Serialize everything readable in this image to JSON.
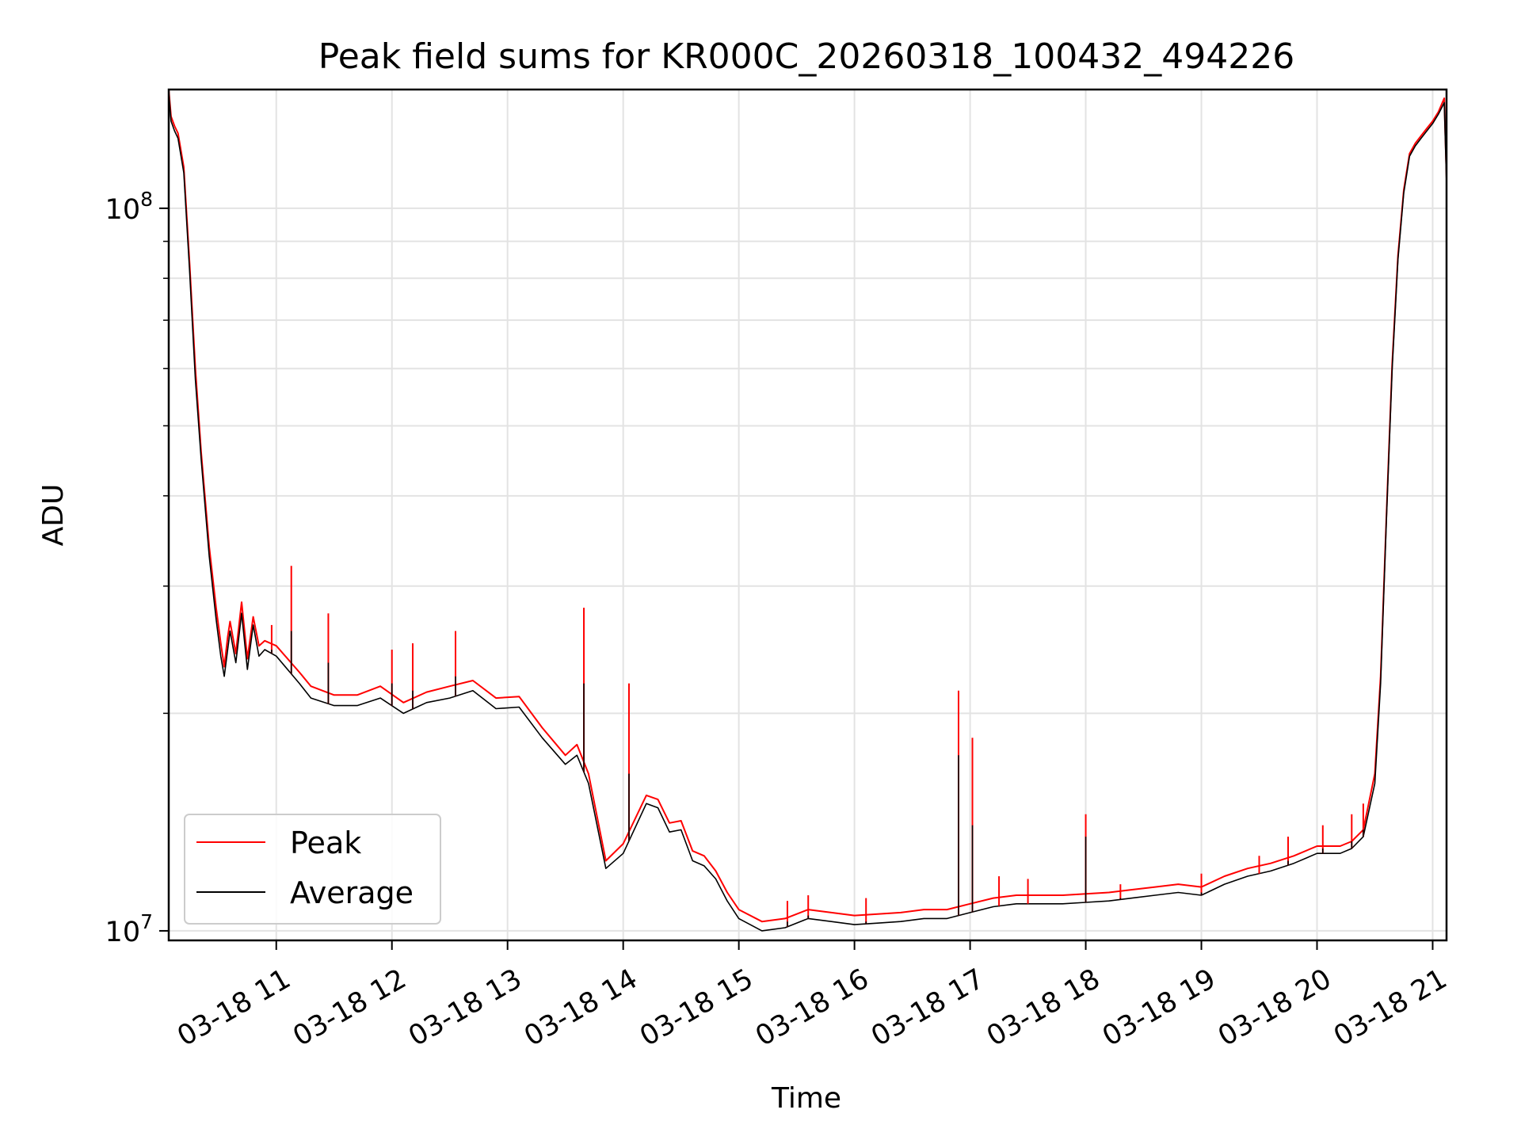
{
  "chart_data": {
    "type": "line",
    "title": "Peak field sums for KR000C_20260318_100432_494226",
    "xlabel": "Time",
    "ylabel": "ADU",
    "yscale": "log",
    "grid": true,
    "grid_minor": true,
    "legend_position": "lower-left",
    "colors": {
      "Peak": "#ff0000",
      "Average": "#000000"
    },
    "x_unit": "hours of 2026-03-18",
    "xlim": [
      10.07,
      21.12
    ],
    "ylim": [
      9700000,
      146000000
    ],
    "x_ticks": [
      11,
      12,
      13,
      14,
      15,
      16,
      17,
      18,
      19,
      20,
      21
    ],
    "x_tick_labels": [
      "03-18 11",
      "03-18 12",
      "03-18 13",
      "03-18 14",
      "03-18 15",
      "03-18 16",
      "03-18 17",
      "03-18 18",
      "03-18 19",
      "03-18 20",
      "03-18 21"
    ],
    "y_ticks": [
      10000000,
      100000000
    ],
    "y_tick_labels": {
      "10000000": {
        "base": "10",
        "exp": "7"
      },
      "100000000": {
        "base": "10",
        "exp": "8"
      }
    },
    "series": [
      {
        "name": "Average",
        "x": [
          10.07,
          10.09,
          10.12,
          10.15,
          10.2,
          10.25,
          10.3,
          10.35,
          10.42,
          10.48,
          10.52,
          10.55,
          10.58,
          10.6,
          10.65,
          10.7,
          10.75,
          10.8,
          10.85,
          10.9,
          11.0,
          11.2,
          11.3,
          11.5,
          11.7,
          11.9,
          12.1,
          12.3,
          12.5,
          12.7,
          12.9,
          13.1,
          13.3,
          13.5,
          13.6,
          13.7,
          13.85,
          14.0,
          14.2,
          14.3,
          14.4,
          14.5,
          14.6,
          14.7,
          14.8,
          14.9,
          15.0,
          15.2,
          15.4,
          15.6,
          15.8,
          16.0,
          16.2,
          16.4,
          16.6,
          16.8,
          17.0,
          17.2,
          17.4,
          17.6,
          17.8,
          18.0,
          18.2,
          18.4,
          18.6,
          18.8,
          19.0,
          19.2,
          19.4,
          19.6,
          19.8,
          20.0,
          20.2,
          20.3,
          20.4,
          20.5,
          20.55,
          20.6,
          20.65,
          20.7,
          20.75,
          20.8,
          20.85,
          20.9,
          20.95,
          21.0,
          21.05,
          21.1,
          21.12
        ],
        "y": [
          145000000,
          132000000,
          128000000,
          125000000,
          112000000,
          82000000,
          58000000,
          45000000,
          33000000,
          27000000,
          24000000,
          22500000,
          24500000,
          26000000,
          23500000,
          27500000,
          23000000,
          26500000,
          24000000,
          24500000,
          24000000,
          22000000,
          21000000,
          20500000,
          20500000,
          21000000,
          20000000,
          20700000,
          21000000,
          21500000,
          20300000,
          20400000,
          18500000,
          17000000,
          17500000,
          16000000,
          12200000,
          12800000,
          15000000,
          14800000,
          13700000,
          13800000,
          12500000,
          12300000,
          11800000,
          11000000,
          10400000,
          10000000,
          10100000,
          10400000,
          10300000,
          10200000,
          10250000,
          10300000,
          10400000,
          10400000,
          10600000,
          10800000,
          10900000,
          10900000,
          10900000,
          10950000,
          11000000,
          11100000,
          11200000,
          11300000,
          11200000,
          11600000,
          11900000,
          12100000,
          12400000,
          12800000,
          12800000,
          13000000,
          13500000,
          16000000,
          22000000,
          37000000,
          60000000,
          85000000,
          105000000,
          118000000,
          122000000,
          125000000,
          128000000,
          131000000,
          135000000,
          140000000,
          108000000
        ]
      },
      {
        "name": "Peak",
        "x": [
          10.07,
          10.09,
          10.12,
          10.15,
          10.2,
          10.25,
          10.3,
          10.35,
          10.42,
          10.48,
          10.52,
          10.55,
          10.58,
          10.6,
          10.65,
          10.7,
          10.75,
          10.8,
          10.85,
          10.9,
          11.0,
          11.2,
          11.3,
          11.5,
          11.7,
          11.9,
          12.1,
          12.3,
          12.5,
          12.7,
          12.9,
          13.1,
          13.3,
          13.5,
          13.6,
          13.7,
          13.85,
          14.0,
          14.2,
          14.3,
          14.4,
          14.5,
          14.6,
          14.7,
          14.8,
          14.9,
          15.0,
          15.2,
          15.4,
          15.6,
          15.8,
          16.0,
          16.2,
          16.4,
          16.6,
          16.8,
          17.0,
          17.2,
          17.4,
          17.6,
          17.8,
          18.0,
          18.2,
          18.4,
          18.6,
          18.8,
          19.0,
          19.2,
          19.4,
          19.6,
          19.8,
          20.0,
          20.2,
          20.3,
          20.4,
          20.5,
          20.55,
          20.6,
          20.65,
          20.7,
          20.75,
          20.8,
          20.85,
          20.9,
          20.95,
          21.0,
          21.05,
          21.1,
          21.12
        ],
        "y": [
          146000000,
          134000000,
          130000000,
          127000000,
          114000000,
          84000000,
          60000000,
          46000000,
          34000000,
          28000000,
          25000000,
          23200000,
          25500000,
          26800000,
          24200000,
          28500000,
          23800000,
          27200000,
          24800000,
          25200000,
          24800000,
          22800000,
          21800000,
          21200000,
          21200000,
          21800000,
          20700000,
          21400000,
          21800000,
          22200000,
          21000000,
          21100000,
          19100000,
          17500000,
          18100000,
          16500000,
          12500000,
          13200000,
          15400000,
          15200000,
          14100000,
          14200000,
          12900000,
          12700000,
          12100000,
          11300000,
          10700000,
          10300000,
          10400000,
          10700000,
          10600000,
          10500000,
          10550000,
          10600000,
          10700000,
          10700000,
          10900000,
          11100000,
          11200000,
          11200000,
          11200000,
          11250000,
          11300000,
          11400000,
          11500000,
          11600000,
          11500000,
          11900000,
          12200000,
          12400000,
          12700000,
          13100000,
          13100000,
          13300000,
          13800000,
          16500000,
          22500000,
          37500000,
          61000000,
          86000000,
          106000000,
          119000000,
          123000000,
          126000000,
          129000000,
          132000000,
          136000000,
          142000000,
          110000000
        ]
      }
    ],
    "spikes": [
      {
        "x": 10.96,
        "peak": 26500000,
        "average": 24500000
      },
      {
        "x": 11.13,
        "peak": 32000000,
        "average": 26000000
      },
      {
        "x": 11.45,
        "peak": 27500000,
        "average": 23500000
      },
      {
        "x": 12.0,
        "peak": 24500000,
        "average": 22000000
      },
      {
        "x": 12.18,
        "peak": 25000000,
        "average": 21500000
      },
      {
        "x": 12.55,
        "peak": 26000000,
        "average": 22500000
      },
      {
        "x": 13.66,
        "peak": 28000000,
        "average": 22000000
      },
      {
        "x": 14.05,
        "peak": 22000000,
        "average": 16500000
      },
      {
        "x": 15.42,
        "peak": 11000000,
        "average": 10300000
      },
      {
        "x": 15.6,
        "peak": 11200000,
        "average": 10500000
      },
      {
        "x": 16.1,
        "peak": 11100000,
        "average": 10300000
      },
      {
        "x": 16.9,
        "peak": 21500000,
        "average": 17500000
      },
      {
        "x": 17.02,
        "peak": 18500000,
        "average": 14000000
      },
      {
        "x": 17.25,
        "peak": 11900000,
        "average": 10800000
      },
      {
        "x": 17.5,
        "peak": 11800000,
        "average": 10900000
      },
      {
        "x": 18.0,
        "peak": 14500000,
        "average": 13500000
      },
      {
        "x": 18.3,
        "peak": 11600000,
        "average": 11100000
      },
      {
        "x": 19.0,
        "peak": 12000000,
        "average": 11300000
      },
      {
        "x": 19.5,
        "peak": 12700000,
        "average": 12000000
      },
      {
        "x": 19.75,
        "peak": 13500000,
        "average": 12500000
      },
      {
        "x": 20.05,
        "peak": 14000000,
        "average": 13000000
      },
      {
        "x": 20.3,
        "peak": 14500000,
        "average": 13300000
      },
      {
        "x": 20.4,
        "peak": 15000000,
        "average": 13800000
      }
    ]
  }
}
